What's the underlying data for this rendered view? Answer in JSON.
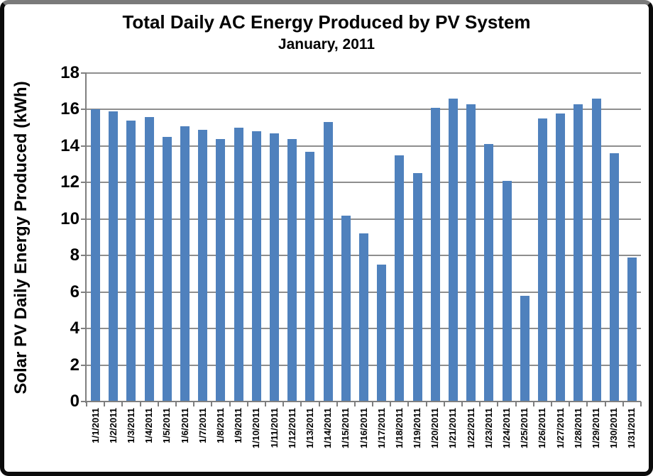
{
  "chart_data": {
    "type": "bar",
    "title": "Total Daily AC Energy Produced by PV System",
    "subtitle": "January, 2011",
    "ylabel": "Solar PV Daily Energy Produced (kWh)",
    "xlabel": "",
    "ylim": [
      0,
      18
    ],
    "ytick_step": 2,
    "ytick_labels": [
      "0",
      "2",
      "4",
      "6",
      "8",
      "10",
      "12",
      "14",
      "16",
      "18"
    ],
    "grid": true,
    "legend_position": "none",
    "bar_color": "#4F81BD",
    "gridline_color": "#8e8e8e",
    "axis_color": "#7f7f7f",
    "categories": [
      "1/1/2011",
      "1/2/2011",
      "1/3/2011",
      "1/4/2011",
      "1/5/2011",
      "1/6/2011",
      "1/7/2011",
      "1/8/2011",
      "1/9/2011",
      "1/10/2011",
      "1/11/2011",
      "1/12/2011",
      "1/13/2011",
      "1/14/2011",
      "1/15/2011",
      "1/16/2011",
      "1/17/2011",
      "1/18/2011",
      "1/19/2011",
      "1/20/2011",
      "1/21/2011",
      "1/22/2011",
      "1/23/2011",
      "1/24/2011",
      "1/25/2011",
      "1/26/2011",
      "1/27/2011",
      "1/28/2011",
      "1/29/2011",
      "1/30/2011",
      "1/31/2011"
    ],
    "values": [
      16.0,
      15.9,
      15.4,
      15.6,
      14.5,
      15.1,
      14.9,
      14.4,
      15.0,
      14.8,
      14.7,
      14.4,
      13.7,
      15.3,
      10.2,
      9.2,
      7.5,
      13.5,
      12.5,
      16.1,
      16.6,
      16.3,
      14.1,
      12.1,
      5.8,
      15.5,
      15.8,
      16.3,
      16.6,
      13.6,
      7.9
    ]
  }
}
